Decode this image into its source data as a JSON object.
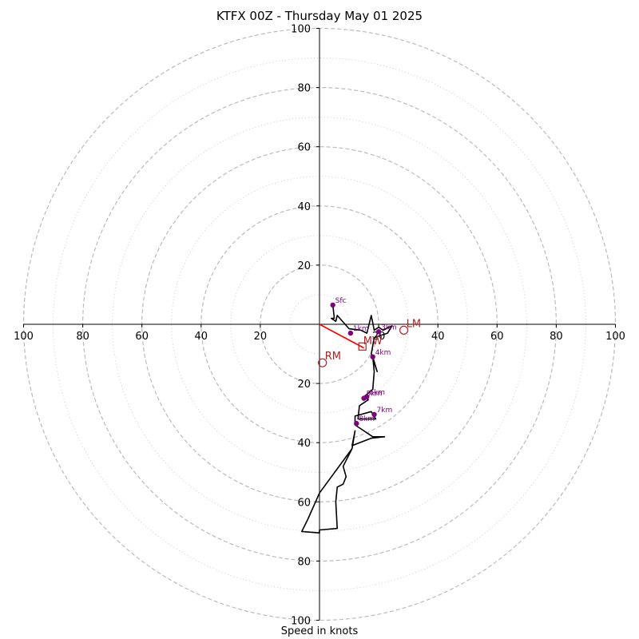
{
  "chart_data": {
    "type": "hodograph",
    "title": "KTFX 00Z - Thursday May 01 2025",
    "xlabel": "Speed in knots",
    "units": "knots",
    "axis_range": [
      -100,
      100
    ],
    "ring_major": [
      20,
      40,
      60,
      80,
      100
    ],
    "ring_minor": [
      10,
      30,
      50,
      70,
      90
    ],
    "tick_labels": [
      "100",
      "80",
      "60",
      "40",
      "20",
      "20",
      "40",
      "60",
      "80",
      "100"
    ],
    "tick_values": [
      -100,
      -80,
      -60,
      -40,
      -20,
      20,
      40,
      60,
      80,
      100
    ],
    "grid": true,
    "profile": [
      {
        "u": 4.5,
        "v": 6.5
      },
      {
        "u": 5.0,
        "v": 2.0
      },
      {
        "u": 4.0,
        "v": 2.0
      },
      {
        "u": 5.5,
        "v": 1.0
      },
      {
        "u": 6.0,
        "v": 3.0
      },
      {
        "u": 10.0,
        "v": -1.5
      },
      {
        "u": 14.0,
        "v": -2.0
      },
      {
        "u": 16.0,
        "v": -3.0
      },
      {
        "u": 17.5,
        "v": 3.0
      },
      {
        "u": 18.5,
        "v": -2.0
      },
      {
        "u": 20.0,
        "v": -1.0
      },
      {
        "u": 21.5,
        "v": -2.0
      },
      {
        "u": 24.5,
        "v": -0.5
      },
      {
        "u": 23.0,
        "v": -3.0
      },
      {
        "u": 20.0,
        "v": -4.0
      },
      {
        "u": 18.5,
        "v": -4.5
      },
      {
        "u": 17.5,
        "v": -10.0
      },
      {
        "u": 19.5,
        "v": -16.0
      },
      {
        "u": 18.0,
        "v": -11.0
      },
      {
        "u": 18.5,
        "v": -16.0
      },
      {
        "u": 18.0,
        "v": -22.0
      },
      {
        "u": 15.0,
        "v": -24.5
      },
      {
        "u": 16.5,
        "v": -25.5
      },
      {
        "u": 13.5,
        "v": -27.5
      },
      {
        "u": 13.0,
        "v": -32.0
      },
      {
        "u": 19.0,
        "v": -32.0
      },
      {
        "u": 17.5,
        "v": -29.5
      },
      {
        "u": 12.0,
        "v": -31.0
      },
      {
        "u": 12.0,
        "v": -34.0
      },
      {
        "u": 18.0,
        "v": -38.0
      },
      {
        "u": 22.0,
        "v": -38.0
      },
      {
        "u": 17.5,
        "v": -38.5
      },
      {
        "u": 11.0,
        "v": -41.0
      },
      {
        "u": 12.0,
        "v": -36.0
      },
      {
        "u": 11.0,
        "v": -42.0
      },
      {
        "u": 8.0,
        "v": -48.0
      },
      {
        "u": 9.0,
        "v": -51.5
      },
      {
        "u": 8.0,
        "v": -54.0
      },
      {
        "u": 6.0,
        "v": -55.0
      },
      {
        "u": 5.5,
        "v": -60.0
      },
      {
        "u": 6.0,
        "v": -69.0
      },
      {
        "u": 0.0,
        "v": -69.5
      },
      {
        "u": 0.0,
        "v": -70.5
      },
      {
        "u": -6.0,
        "v": -70.0
      },
      {
        "u": -4.0,
        "v": -66.0
      },
      {
        "u": 0.0,
        "v": -57.0
      },
      {
        "u": 11.0,
        "v": -42.0
      }
    ],
    "height_markers": [
      {
        "label": "Sfc",
        "u": 4.5,
        "v": 6.5
      },
      {
        "label": "1km",
        "u": 10.5,
        "v": -3.0
      },
      {
        "label": "3km",
        "u": 20.0,
        "v": -2.5
      },
      {
        "label": "4km",
        "u": 18.0,
        "v": -11.0
      },
      {
        "label": "5km",
        "u": 15.0,
        "v": -25.0
      },
      {
        "label": "6km",
        "u": 16.0,
        "v": -24.5
      },
      {
        "label": "7km",
        "u": 18.5,
        "v": -30.5
      },
      {
        "label": "8km",
        "u": 12.5,
        "v": -33.5
      }
    ],
    "storm_motions": [
      {
        "label": "RM",
        "u": 1.0,
        "v": -13.0
      },
      {
        "label": "LM",
        "u": 28.5,
        "v": -2.0
      }
    ],
    "mean_wind": {
      "label": "MW",
      "u": 14.5,
      "v": -7.5
    },
    "shear_vector_end": {
      "u": 15.0,
      "v": -8.0
    },
    "colors": {
      "profile": "#000000",
      "markers": "#800080",
      "storm_motion": "#b22222",
      "shear_vector": "#ff0000",
      "grid": "#bbbbbb"
    }
  }
}
